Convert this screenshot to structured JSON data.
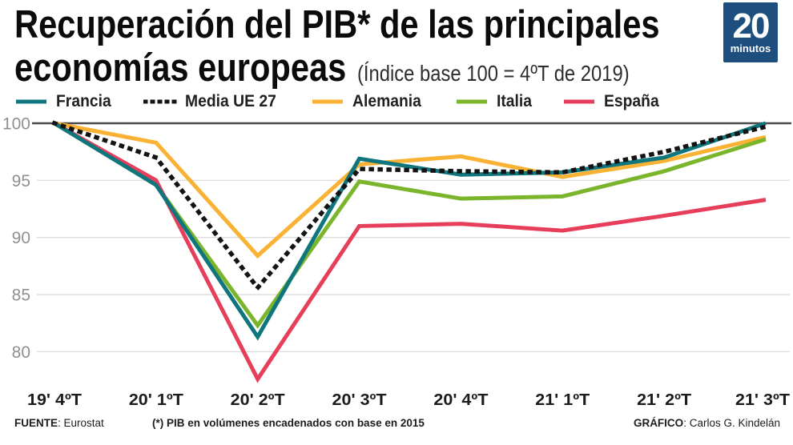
{
  "header": {
    "title_line1": "Recuperación del PIB* de las principales",
    "title_line2": "economías europeas",
    "subtitle": "(Índice base 100 = 4ºT de 2019)",
    "logo": {
      "number": "20",
      "word": "minutos",
      "bg_color": "#1d4e7e"
    }
  },
  "chart_data": {
    "type": "line",
    "title": "Recuperación del PIB* de las principales economías europeas",
    "subtitle": "Índice base 100 = 4ºT de 2019",
    "categories": [
      "19' 4ºT",
      "20' 1ºT",
      "20' 2ºT",
      "20' 3ºT",
      "20' 4ºT",
      "21' 1ºT",
      "21' 2ºT",
      "21' 3ºT"
    ],
    "series": [
      {
        "name": "Francia",
        "color": "#0f767d",
        "dash": "solid",
        "z": 4,
        "values": [
          100,
          94.6,
          81.3,
          96.9,
          95.5,
          95.7,
          97.0,
          100
        ]
      },
      {
        "name": "Media UE 27",
        "color": "#141414",
        "dash": "dotted",
        "z": 5,
        "values": [
          100,
          97.0,
          85.6,
          96.0,
          95.8,
          95.7,
          97.5,
          99.7
        ]
      },
      {
        "name": "Alemania",
        "color": "#f9b233",
        "dash": "solid",
        "z": 1,
        "values": [
          100,
          98.3,
          88.4,
          96.4,
          97.1,
          95.3,
          96.7,
          98.8
        ]
      },
      {
        "name": "Italia",
        "color": "#7ab52c",
        "dash": "solid",
        "z": 2,
        "values": [
          100,
          94.6,
          82.3,
          94.9,
          93.4,
          93.6,
          95.8,
          98.6
        ]
      },
      {
        "name": "España",
        "color": "#e73e5b",
        "dash": "solid",
        "z": 3,
        "values": [
          100,
          95.0,
          77.6,
          91.0,
          91.2,
          90.6,
          91.9,
          93.3
        ]
      }
    ],
    "y_ticks": [
      100,
      95,
      90,
      85,
      80
    ],
    "ylim": [
      77.3,
      100.3
    ],
    "baseline_value": 100,
    "grid": true,
    "legend_position": "top",
    "grid_color": "#dcdcdc",
    "baseline_color": "#4a4a4a"
  },
  "footer": {
    "source_label": "FUENTE",
    "source_value": ": Eurostat",
    "note": "(*) PIB en volúmenes encadenados con base en 2015",
    "credit_label": "GRÁFICO",
    "credit_value": ": Carlos G. Kindelán"
  }
}
